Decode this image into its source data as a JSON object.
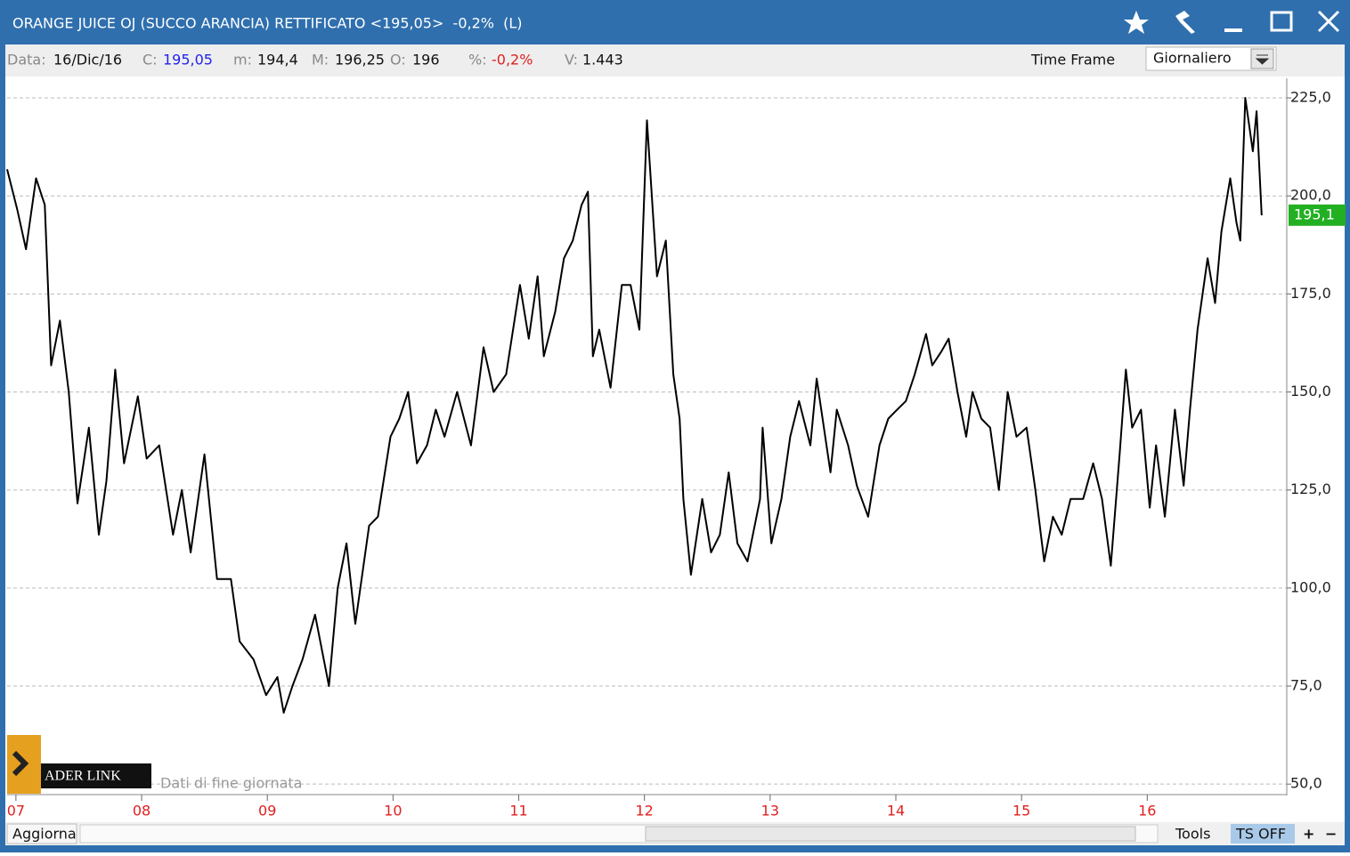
{
  "header": {
    "title": "ORANGE JUICE OJ (SUCCO ARANCIA) RETTIFICATO <195,05>  -0,2%  (L)",
    "fields": [
      {
        "key": "Data:",
        "value": "16/Dic/16"
      },
      {
        "key": "C:",
        "value": "195,05"
      },
      {
        "key": "m:",
        "value": "194,4"
      },
      {
        "key": "M:",
        "value": "196,25"
      },
      {
        "key": "O:",
        "value": "196"
      },
      {
        "key": "%:",
        "value": "-0,2%"
      },
      {
        "key": "V:",
        "value": "1.443"
      }
    ],
    "time_frame_label": "Time Frame",
    "time_frame": "Giornaliero"
  },
  "chart_data": {
    "type": "line",
    "color": "#000000",
    "grid": true,
    "x": [
      2006.93,
      2007.01,
      2007.08,
      2007.16,
      2007.23,
      2007.28,
      2007.35,
      2007.42,
      2007.49,
      2007.58,
      2007.66,
      2007.72,
      2007.79,
      2007.86,
      2007.97,
      2008.04,
      2008.14,
      2008.25,
      2008.32,
      2008.39,
      2008.5,
      2008.6,
      2008.71,
      2008.78,
      2008.89,
      2008.99,
      2009.08,
      2009.13,
      2009.2,
      2009.28,
      2009.38,
      2009.49,
      2009.56,
      2009.63,
      2009.7,
      2009.81,
      2009.88,
      2009.98,
      2010.05,
      2010.12,
      2010.19,
      2010.27,
      2010.34,
      2010.41,
      2010.51,
      2010.62,
      2010.72,
      2010.8,
      2010.9,
      2011.01,
      2011.08,
      2011.15,
      2011.2,
      2011.29,
      2011.36,
      2011.43,
      2011.5,
      2011.55,
      2011.59,
      2011.64,
      2011.73,
      2011.82,
      2011.89,
      2011.96,
      2012.02,
      2012.1,
      2012.17,
      2012.23,
      2012.28,
      2012.31,
      2012.37,
      2012.46,
      2012.53,
      2012.6,
      2012.67,
      2012.74,
      2012.82,
      2012.92,
      2012.94,
      2013.01,
      2013.09,
      2013.16,
      2013.23,
      2013.32,
      2013.37,
      2013.48,
      2013.53,
      2013.62,
      2013.69,
      2013.78,
      2013.87,
      2013.94,
      2014.01,
      2014.08,
      2014.15,
      2014.24,
      2014.29,
      2014.36,
      2014.42,
      2014.49,
      2014.56,
      2014.61,
      2014.68,
      2014.75,
      2014.82,
      2014.89,
      2014.96,
      2015.04,
      2015.11,
      2015.18,
      2015.25,
      2015.32,
      2015.39,
      2015.49,
      2015.57,
      2015.64,
      2015.71,
      2015.78,
      2015.83,
      2015.88,
      2015.95,
      2016.02,
      2016.07,
      2016.14,
      2016.22,
      2016.29,
      2016.34,
      2016.4,
      2016.48,
      2016.54,
      2016.59,
      2016.66,
      2016.71,
      2016.74,
      2016.78,
      2016.84,
      2016.87,
      2016.91
    ],
    "values": [
      206.8,
      196.6,
      186.4,
      204.5,
      197.7,
      156.8,
      168.2,
      150.0,
      121.6,
      140.9,
      113.6,
      127.3,
      155.7,
      131.8,
      148.9,
      133.0,
      136.4,
      113.6,
      125.0,
      109.1,
      134.1,
      102.3,
      102.3,
      86.4,
      81.8,
      72.7,
      77.3,
      68.2,
      75.0,
      81.8,
      93.2,
      75.0,
      100.0,
      111.4,
      90.9,
      115.9,
      118.2,
      138.6,
      143.2,
      150.0,
      131.8,
      136.4,
      145.5,
      138.6,
      150.0,
      136.4,
      161.4,
      150.0,
      154.5,
      177.3,
      163.6,
      179.5,
      159.1,
      170.5,
      184.1,
      188.6,
      197.7,
      201.1,
      159.1,
      165.9,
      151.1,
      177.3,
      177.3,
      165.9,
      219.3,
      179.5,
      188.6,
      154.5,
      143.2,
      122.7,
      103.4,
      122.7,
      109.1,
      113.6,
      129.5,
      111.4,
      106.8,
      122.7,
      140.9,
      111.4,
      122.7,
      138.6,
      147.7,
      136.4,
      153.4,
      129.5,
      145.5,
      136.4,
      126.1,
      118.2,
      136.4,
      143.2,
      145.5,
      147.7,
      154.5,
      164.8,
      156.8,
      160.2,
      163.6,
      150.0,
      138.6,
      150.0,
      143.2,
      140.9,
      125.0,
      150.0,
      138.6,
      140.9,
      125.0,
      106.8,
      118.2,
      113.6,
      122.7,
      122.7,
      131.8,
      122.7,
      105.7,
      134.1,
      155.7,
      140.9,
      145.5,
      120.5,
      136.4,
      118.2,
      145.5,
      126.1,
      145.5,
      165.9,
      184.1,
      172.7,
      190.9,
      204.5,
      193.2,
      188.6,
      225.0,
      211.4,
      221.6,
      195.05
    ],
    "xlim": [
      2006.93,
      2017.11
    ],
    "xticks": [
      {
        "value": 2007,
        "label": "07"
      },
      {
        "value": 2008,
        "label": "08"
      },
      {
        "value": 2009,
        "label": "09"
      },
      {
        "value": 2010,
        "label": "10"
      },
      {
        "value": 2011,
        "label": "11"
      },
      {
        "value": 2012,
        "label": "12"
      },
      {
        "value": 2013,
        "label": "13"
      },
      {
        "value": 2014,
        "label": "14"
      },
      {
        "value": 2015,
        "label": "15"
      },
      {
        "value": 2016,
        "label": "16"
      }
    ],
    "ylim": [
      48,
      230
    ],
    "yticks": [
      {
        "value": 50,
        "label": "50,0"
      },
      {
        "value": 75,
        "label": "75,0"
      },
      {
        "value": 100,
        "label": "100,0"
      },
      {
        "value": 125,
        "label": "125,0"
      },
      {
        "value": 150,
        "label": "150,0"
      },
      {
        "value": 175,
        "label": "175,0"
      },
      {
        "value": 200,
        "label": "200,0"
      },
      {
        "value": 225,
        "label": "225,0"
      }
    ],
    "last_tag": {
      "value": 195.1,
      "label": "195,1"
    }
  },
  "logo": {
    "text": "ADER LINK",
    "caption": "Dati di fine giornata"
  },
  "footer": {
    "refresh": "Aggiorna",
    "tools": "Tools",
    "ts": "TS OFF",
    "plus": "+",
    "minus": "−"
  }
}
